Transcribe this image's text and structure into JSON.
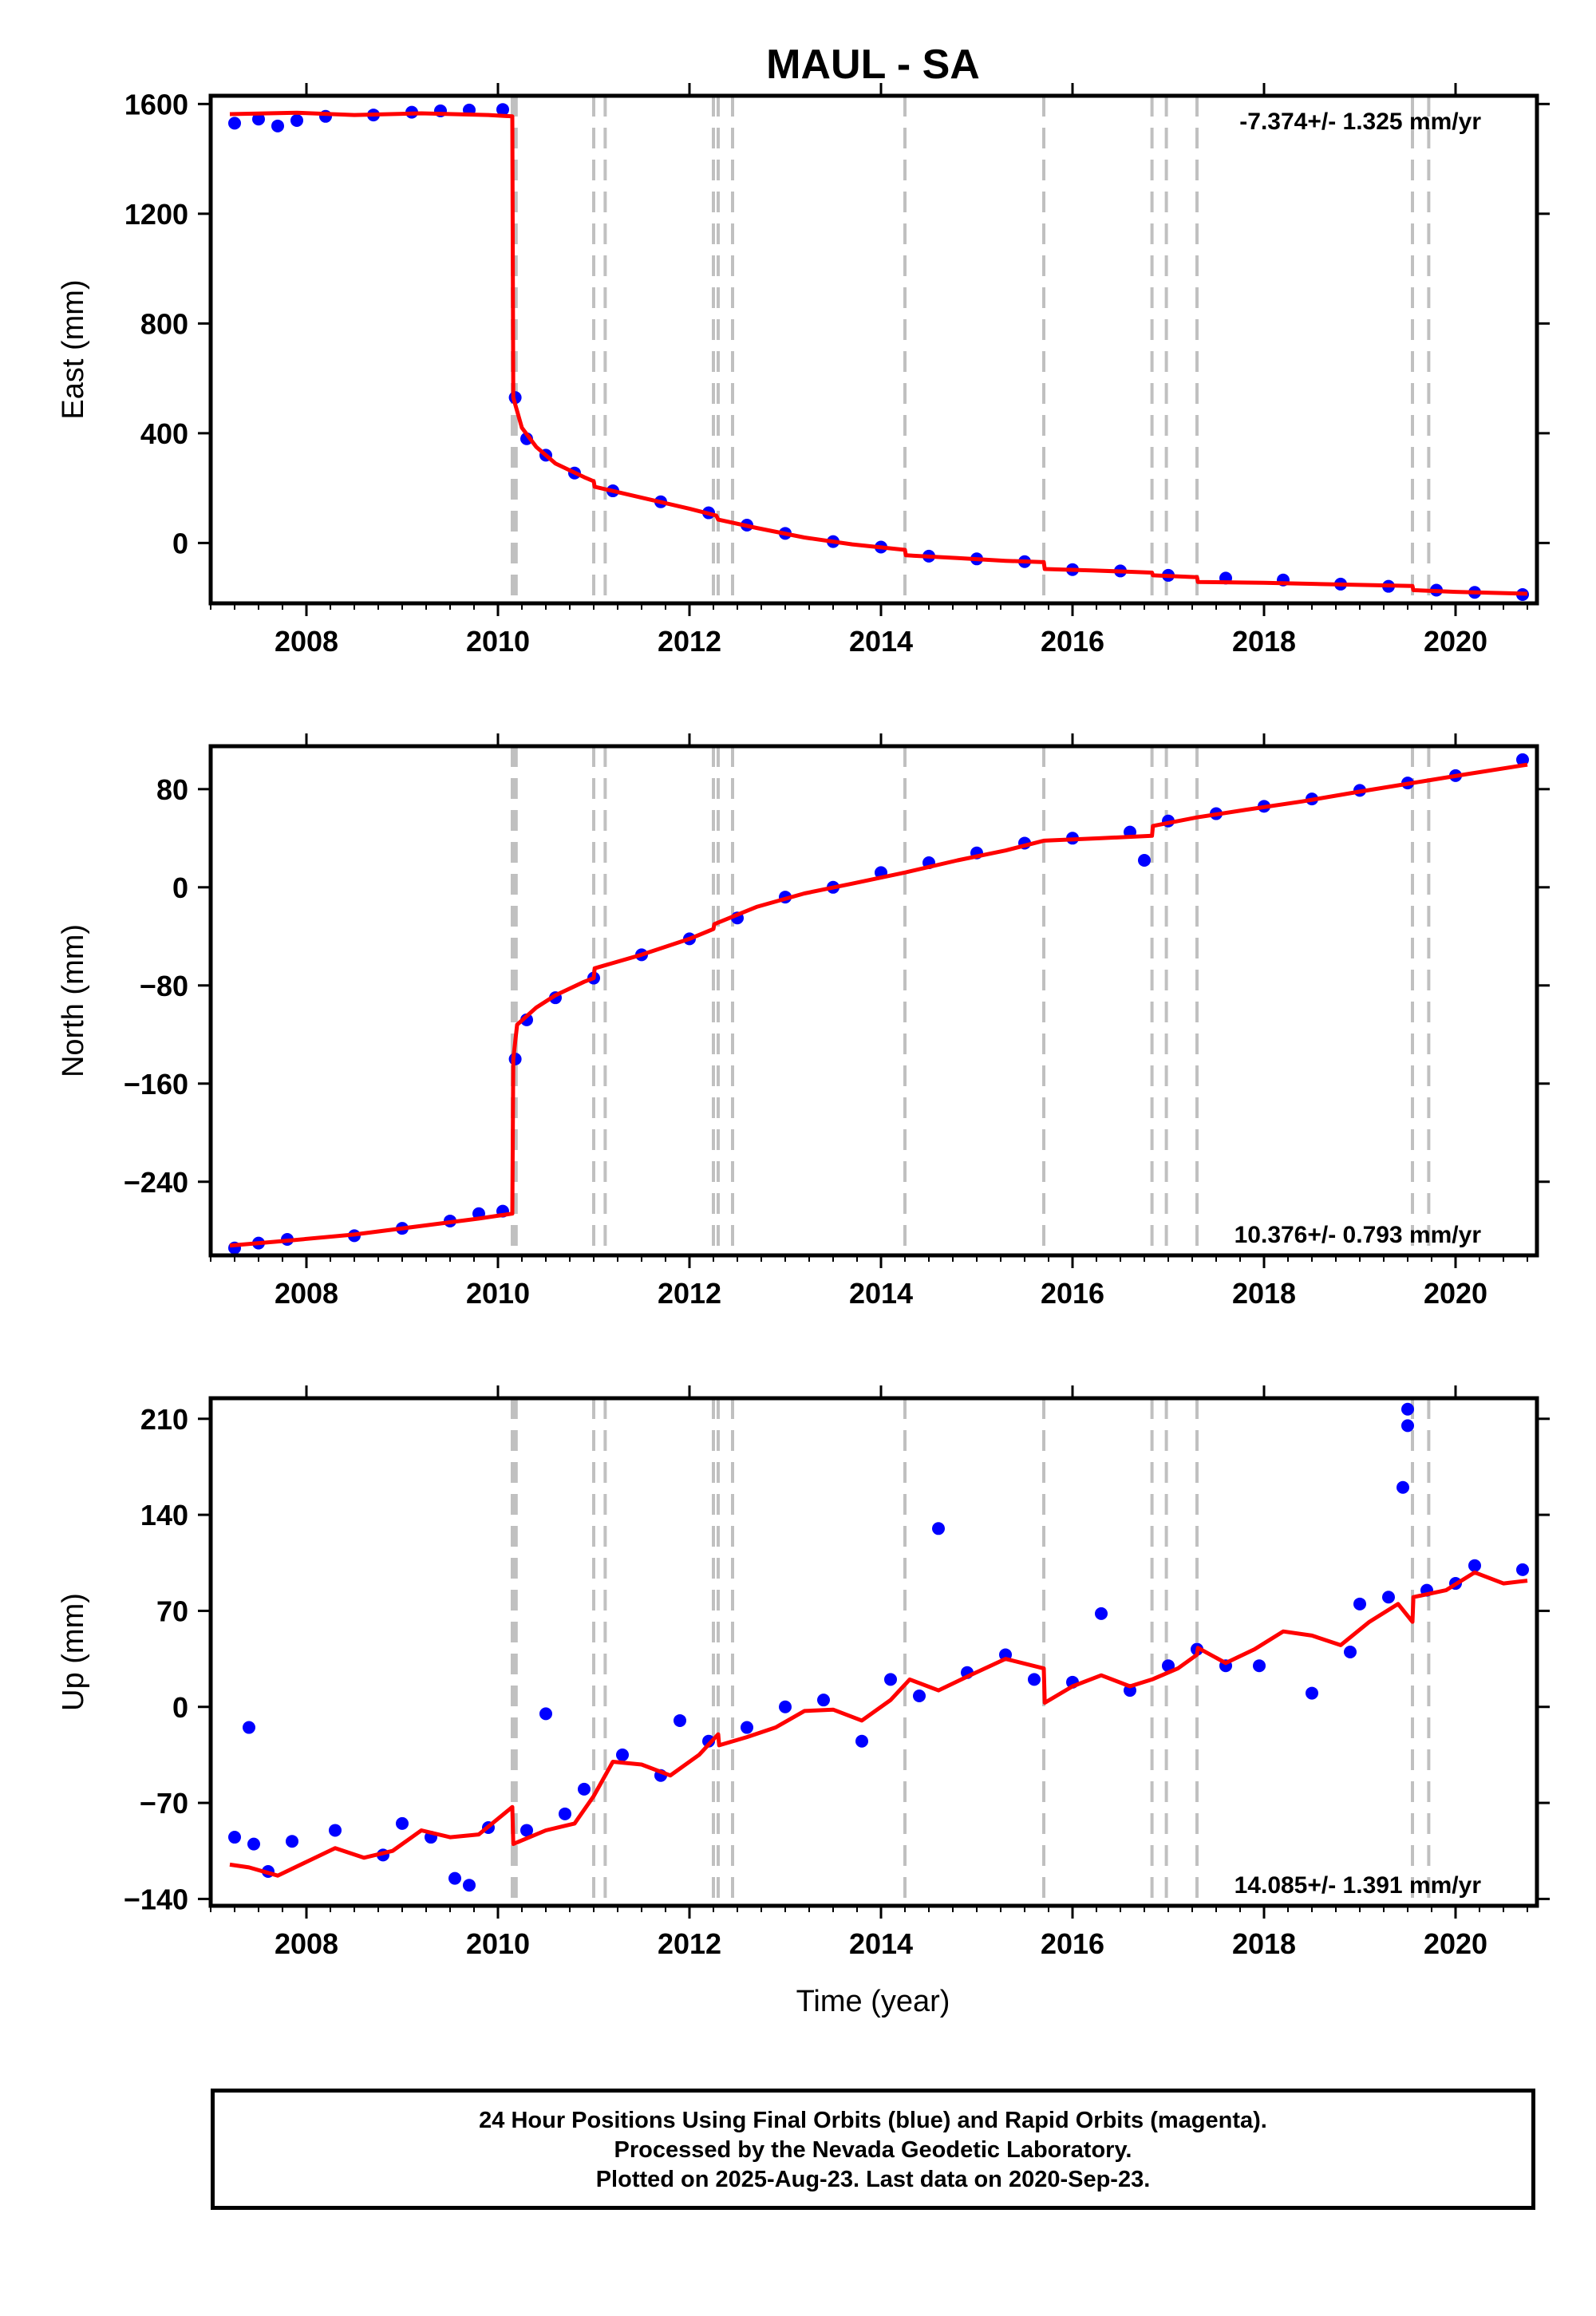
{
  "title": "MAUL - SA",
  "x_axis_label": "Time (year)",
  "footer": {
    "line1": "24 Hour Positions Using Final Orbits (blue) and Rapid Orbits (magenta).",
    "line2": "Processed by the Nevada Geodetic Laboratory.",
    "line3": "Plotted on 2025-Aug-23. Last data on 2020-Sep-23."
  },
  "colors": {
    "data_points": "#0000ff",
    "model_fit": "#ff0000",
    "event_lines": "#c0c0c0",
    "frame": "#000000"
  },
  "chart_data": [
    {
      "type": "scatter",
      "component": "East",
      "ylabel": "East (mm)",
      "rate_label": "-7.374+/- 1.325 mm/yr",
      "rate_position": "top-right",
      "xlim": [
        2007.0,
        2020.85
      ],
      "ylim": [
        -220,
        1630
      ],
      "yticks": [
        1600,
        1200,
        800,
        400,
        0
      ],
      "xticks": [
        2008,
        2010,
        2012,
        2014,
        2016,
        2018,
        2020
      ],
      "event_lines": [
        2010.15,
        2010.17,
        2010.19,
        2011.0,
        2011.12,
        2012.25,
        2012.3,
        2012.45,
        2014.25,
        2015.7,
        2016.83,
        2016.98,
        2017.3,
        2019.55,
        2019.72
      ],
      "model": [
        [
          2007.2,
          1563
        ],
        [
          2007.9,
          1568
        ],
        [
          2008.5,
          1560
        ],
        [
          2009.2,
          1566
        ],
        [
          2009.9,
          1560
        ],
        [
          2010.15,
          1555
        ],
        [
          2010.16,
          530
        ],
        [
          2010.25,
          420
        ],
        [
          2010.4,
          350
        ],
        [
          2010.6,
          290
        ],
        [
          2010.9,
          240
        ],
        [
          2011.0,
          225
        ],
        [
          2011.01,
          205
        ],
        [
          2011.5,
          165
        ],
        [
          2012.0,
          125
        ],
        [
          2012.28,
          100
        ],
        [
          2012.3,
          85
        ],
        [
          2012.7,
          55
        ],
        [
          2013.2,
          20
        ],
        [
          2013.7,
          -5
        ],
        [
          2014.25,
          -25
        ],
        [
          2014.26,
          -45
        ],
        [
          2014.8,
          -55
        ],
        [
          2015.3,
          -65
        ],
        [
          2015.7,
          -70
        ],
        [
          2015.71,
          -95
        ],
        [
          2016.2,
          -100
        ],
        [
          2016.83,
          -108
        ],
        [
          2016.84,
          -118
        ],
        [
          2017.3,
          -125
        ],
        [
          2017.31,
          -142
        ],
        [
          2018.0,
          -145
        ],
        [
          2018.6,
          -150
        ],
        [
          2019.55,
          -157
        ],
        [
          2019.56,
          -172
        ],
        [
          2020.0,
          -178
        ],
        [
          2020.75,
          -185
        ]
      ],
      "points": [
        [
          2007.25,
          1530
        ],
        [
          2007.5,
          1545
        ],
        [
          2007.7,
          1520
        ],
        [
          2007.9,
          1540
        ],
        [
          2008.2,
          1555
        ],
        [
          2008.7,
          1560
        ],
        [
          2009.1,
          1570
        ],
        [
          2009.4,
          1575
        ],
        [
          2009.7,
          1578
        ],
        [
          2010.05,
          1580
        ],
        [
          2010.18,
          530
        ],
        [
          2010.3,
          380
        ],
        [
          2010.5,
          320
        ],
        [
          2010.8,
          255
        ],
        [
          2011.2,
          190
        ],
        [
          2011.7,
          150
        ],
        [
          2012.2,
          110
        ],
        [
          2012.6,
          65
        ],
        [
          2013.0,
          35
        ],
        [
          2013.5,
          5
        ],
        [
          2014.0,
          -15
        ],
        [
          2014.5,
          -48
        ],
        [
          2015.0,
          -58
        ],
        [
          2015.5,
          -68
        ],
        [
          2016.0,
          -97
        ],
        [
          2016.5,
          -102
        ],
        [
          2017.0,
          -118
        ],
        [
          2017.6,
          -128
        ],
        [
          2018.2,
          -135
        ],
        [
          2018.8,
          -150
        ],
        [
          2019.3,
          -158
        ],
        [
          2019.8,
          -172
        ],
        [
          2020.2,
          -180
        ],
        [
          2020.7,
          -188
        ]
      ]
    },
    {
      "type": "scatter",
      "component": "North",
      "ylabel": "North (mm)",
      "rate_label": "10.376+/- 0.793 mm/yr",
      "rate_position": "bottom-right",
      "xlim": [
        2007.0,
        2020.85
      ],
      "ylim": [
        -300,
        115
      ],
      "yticks": [
        80,
        0,
        -80,
        -160,
        -240
      ],
      "xticks": [
        2008,
        2010,
        2012,
        2014,
        2016,
        2018,
        2020
      ],
      "event_lines": [
        2010.15,
        2010.17,
        2010.19,
        2011.0,
        2011.12,
        2012.25,
        2012.3,
        2012.45,
        2014.25,
        2015.7,
        2016.83,
        2016.98,
        2017.3,
        2019.55,
        2019.72
      ],
      "model": [
        [
          2007.2,
          -292
        ],
        [
          2007.8,
          -288
        ],
        [
          2008.5,
          -283
        ],
        [
          2009.2,
          -276
        ],
        [
          2009.8,
          -270
        ],
        [
          2010.15,
          -266
        ],
        [
          2010.16,
          -140
        ],
        [
          2010.2,
          -112
        ],
        [
          2010.4,
          -98
        ],
        [
          2010.6,
          -88
        ],
        [
          2010.9,
          -77
        ],
        [
          2011.0,
          -74
        ],
        [
          2011.01,
          -66
        ],
        [
          2011.5,
          -55
        ],
        [
          2012.0,
          -42
        ],
        [
          2012.25,
          -34
        ],
        [
          2012.26,
          -30
        ],
        [
          2012.7,
          -16
        ],
        [
          2013.2,
          -5
        ],
        [
          2013.7,
          3
        ],
        [
          2014.25,
          12
        ],
        [
          2014.8,
          22
        ],
        [
          2015.3,
          30
        ],
        [
          2015.7,
          38
        ],
        [
          2016.3,
          40
        ],
        [
          2016.83,
          42
        ],
        [
          2016.84,
          50
        ],
        [
          2017.3,
          57
        ],
        [
          2017.8,
          63
        ],
        [
          2018.4,
          70
        ],
        [
          2019.0,
          78
        ],
        [
          2019.55,
          85
        ],
        [
          2020.1,
          92
        ],
        [
          2020.75,
          100
        ]
      ],
      "points": [
        [
          2007.25,
          -294
        ],
        [
          2007.5,
          -290
        ],
        [
          2007.8,
          -287
        ],
        [
          2008.5,
          -284
        ],
        [
          2009.0,
          -278
        ],
        [
          2009.5,
          -272
        ],
        [
          2009.8,
          -266
        ],
        [
          2010.05,
          -264
        ],
        [
          2010.18,
          -140
        ],
        [
          2010.3,
          -108
        ],
        [
          2010.6,
          -90
        ],
        [
          2011.0,
          -74
        ],
        [
          2011.5,
          -55
        ],
        [
          2012.0,
          -42
        ],
        [
          2012.5,
          -25
        ],
        [
          2013.0,
          -8
        ],
        [
          2013.5,
          0
        ],
        [
          2014.0,
          12
        ],
        [
          2014.5,
          20
        ],
        [
          2015.0,
          28
        ],
        [
          2015.5,
          36
        ],
        [
          2016.0,
          40
        ],
        [
          2016.6,
          45
        ],
        [
          2016.75,
          22
        ],
        [
          2017.0,
          54
        ],
        [
          2017.5,
          60
        ],
        [
          2018.0,
          66
        ],
        [
          2018.5,
          72
        ],
        [
          2019.0,
          79
        ],
        [
          2019.5,
          85
        ],
        [
          2020.0,
          91
        ],
        [
          2020.7,
          104
        ]
      ]
    },
    {
      "type": "scatter",
      "component": "Up",
      "ylabel": "Up (mm)",
      "rate_label": "14.085+/- 1.391 mm/yr",
      "rate_position": "bottom-right",
      "xlim": [
        2007.0,
        2020.85
      ],
      "ylim": [
        -145,
        225
      ],
      "yticks": [
        210,
        140,
        70,
        0,
        -70,
        -140
      ],
      "xticks": [
        2008,
        2010,
        2012,
        2014,
        2016,
        2018,
        2020
      ],
      "event_lines": [
        2010.15,
        2010.17,
        2010.19,
        2011.0,
        2011.12,
        2012.25,
        2012.3,
        2012.45,
        2014.25,
        2015.7,
        2016.83,
        2016.98,
        2017.3,
        2019.55,
        2019.72
      ],
      "model": [
        [
          2007.2,
          -115
        ],
        [
          2007.4,
          -117
        ],
        [
          2007.7,
          -123
        ],
        [
          2008.0,
          -113
        ],
        [
          2008.3,
          -103
        ],
        [
          2008.6,
          -110
        ],
        [
          2008.9,
          -105
        ],
        [
          2009.2,
          -90
        ],
        [
          2009.5,
          -95
        ],
        [
          2009.8,
          -93
        ],
        [
          2010.15,
          -73
        ],
        [
          2010.16,
          -100
        ],
        [
          2010.5,
          -90
        ],
        [
          2010.8,
          -85
        ],
        [
          2011.0,
          -65
        ],
        [
          2011.2,
          -40
        ],
        [
          2011.5,
          -42
        ],
        [
          2011.8,
          -50
        ],
        [
          2012.1,
          -35
        ],
        [
          2012.3,
          -20
        ],
        [
          2012.31,
          -28
        ],
        [
          2012.6,
          -22
        ],
        [
          2012.9,
          -15
        ],
        [
          2013.2,
          -3
        ],
        [
          2013.5,
          -2
        ],
        [
          2013.8,
          -10
        ],
        [
          2014.1,
          5
        ],
        [
          2014.3,
          20
        ],
        [
          2014.6,
          12
        ],
        [
          2014.9,
          22
        ],
        [
          2015.3,
          35
        ],
        [
          2015.7,
          28
        ],
        [
          2015.71,
          3
        ],
        [
          2016.0,
          15
        ],
        [
          2016.3,
          23
        ],
        [
          2016.6,
          15
        ],
        [
          2016.83,
          20
        ],
        [
          2017.1,
          28
        ],
        [
          2017.3,
          38
        ],
        [
          2017.31,
          43
        ],
        [
          2017.6,
          32
        ],
        [
          2017.9,
          42
        ],
        [
          2018.2,
          55
        ],
        [
          2018.5,
          52
        ],
        [
          2018.8,
          45
        ],
        [
          2019.1,
          62
        ],
        [
          2019.4,
          75
        ],
        [
          2019.55,
          62
        ],
        [
          2019.56,
          80
        ],
        [
          2019.9,
          85
        ],
        [
          2020.2,
          98
        ],
        [
          2020.5,
          90
        ],
        [
          2020.75,
          92
        ]
      ],
      "points": [
        [
          2007.25,
          -95
        ],
        [
          2007.45,
          -100
        ],
        [
          2007.4,
          -15
        ],
        [
          2007.6,
          -120
        ],
        [
          2007.85,
          -98
        ],
        [
          2008.3,
          -90
        ],
        [
          2008.8,
          -108
        ],
        [
          2009.0,
          -85
        ],
        [
          2009.3,
          -95
        ],
        [
          2009.55,
          -125
        ],
        [
          2009.7,
          -130
        ],
        [
          2009.9,
          -88
        ],
        [
          2010.3,
          -90
        ],
        [
          2010.5,
          -5
        ],
        [
          2010.7,
          -78
        ],
        [
          2010.9,
          -60
        ],
        [
          2011.3,
          -35
        ],
        [
          2011.7,
          -50
        ],
        [
          2011.9,
          -10
        ],
        [
          2012.2,
          -25
        ],
        [
          2012.6,
          -15
        ],
        [
          2013.0,
          0
        ],
        [
          2013.4,
          5
        ],
        [
          2013.8,
          -25
        ],
        [
          2014.1,
          20
        ],
        [
          2014.4,
          8
        ],
        [
          2014.6,
          130
        ],
        [
          2014.9,
          25
        ],
        [
          2015.3,
          38
        ],
        [
          2015.6,
          20
        ],
        [
          2016.0,
          18
        ],
        [
          2016.3,
          68
        ],
        [
          2016.6,
          12
        ],
        [
          2017.0,
          30
        ],
        [
          2017.3,
          42
        ],
        [
          2017.6,
          30
        ],
        [
          2017.95,
          30
        ],
        [
          2018.5,
          10
        ],
        [
          2018.9,
          40
        ],
        [
          2019.0,
          75
        ],
        [
          2019.3,
          80
        ],
        [
          2019.45,
          160
        ],
        [
          2019.5,
          205
        ],
        [
          2019.5,
          217
        ],
        [
          2019.7,
          85
        ],
        [
          2020.0,
          90
        ],
        [
          2020.2,
          103
        ],
        [
          2020.7,
          100
        ]
      ]
    }
  ]
}
